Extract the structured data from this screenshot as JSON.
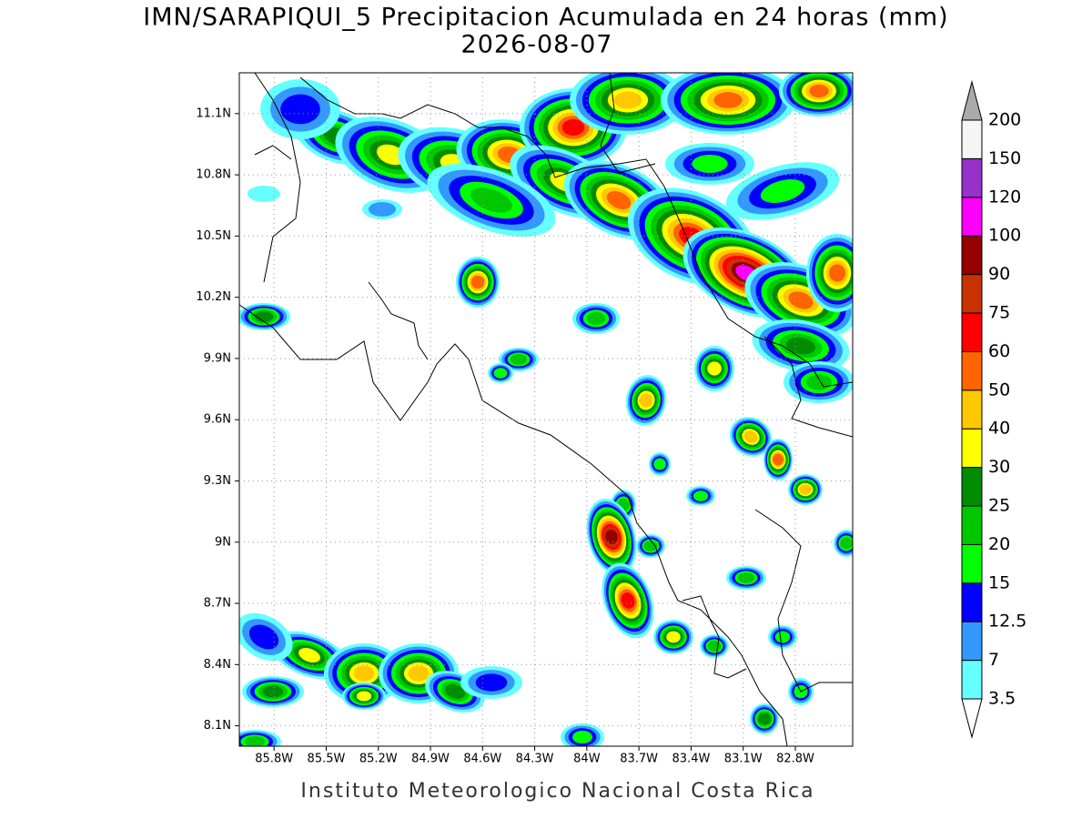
{
  "title": "IMN/SARAPIQUI_5 Precipitacion Acumulada en 24 horas (mm)",
  "subtitle": "2026-08-07",
  "footer": "Instituto Meteorologico Nacional Costa Rica",
  "map": {
    "lonlim": [
      -86.0,
      -82.47
    ],
    "latlim": [
      8.0,
      11.3
    ],
    "lonticks": [
      {
        "value": -85.8,
        "label": "85.8W"
      },
      {
        "value": -85.5,
        "label": "85.5W"
      },
      {
        "value": -85.2,
        "label": "85.2W"
      },
      {
        "value": -84.9,
        "label": "84.9W"
      },
      {
        "value": -84.6,
        "label": "84.6W"
      },
      {
        "value": -84.3,
        "label": "84.3W"
      },
      {
        "value": -84.0,
        "label": "84W"
      },
      {
        "value": -83.7,
        "label": "83.7W"
      },
      {
        "value": -83.4,
        "label": "83.4W"
      },
      {
        "value": -83.1,
        "label": "83.1W"
      },
      {
        "value": -82.8,
        "label": "82.8W"
      }
    ],
    "latticks": [
      {
        "value": 8.1,
        "label": "8.1N"
      },
      {
        "value": 8.4,
        "label": "8.4N"
      },
      {
        "value": 8.7,
        "label": "8.7N"
      },
      {
        "value": 9.0,
        "label": "9N"
      },
      {
        "value": 9.3,
        "label": "9.3N"
      },
      {
        "value": 9.6,
        "label": "9.6N"
      },
      {
        "value": 9.9,
        "label": "9.9N"
      },
      {
        "value": 10.2,
        "label": "10.2N"
      },
      {
        "value": 10.5,
        "label": "10.5N"
      },
      {
        "value": 10.8,
        "label": "10.8N"
      },
      {
        "value": 11.1,
        "label": "11.1N"
      }
    ]
  },
  "colorbar": {
    "levels": [
      3.5,
      7,
      12.5,
      15,
      20,
      25,
      30,
      40,
      50,
      60,
      75,
      90,
      100,
      120,
      150,
      200
    ],
    "colors": [
      "#66ffff",
      "#3399ff",
      "#0000ff",
      "#00ff00",
      "#00c800",
      "#008c00",
      "#ffff00",
      "#ffc800",
      "#ff6400",
      "#ff0000",
      "#c83200",
      "#960000",
      "#ff00ff",
      "#9632c8",
      "#f5f5f5"
    ],
    "under_color": "#ffffff",
    "over_color": "#aaaaaa"
  }
}
